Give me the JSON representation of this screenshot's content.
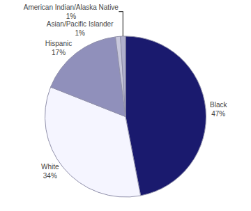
{
  "chart_data": {
    "type": "pie",
    "categories": [
      "Black",
      "White",
      "Hispanic",
      "Asian/Pacific Islander",
      "American Indian/Alaska Native"
    ],
    "values": [
      47,
      34,
      17,
      1,
      1
    ],
    "value_labels": [
      "47%",
      "34%",
      "17%",
      "1%",
      "1%"
    ],
    "colors": [
      "#1a1a6e",
      "#f5f5ff",
      "#9090bb",
      "#c8c8dc",
      "#b0b0cc"
    ],
    "data_labels": true
  }
}
